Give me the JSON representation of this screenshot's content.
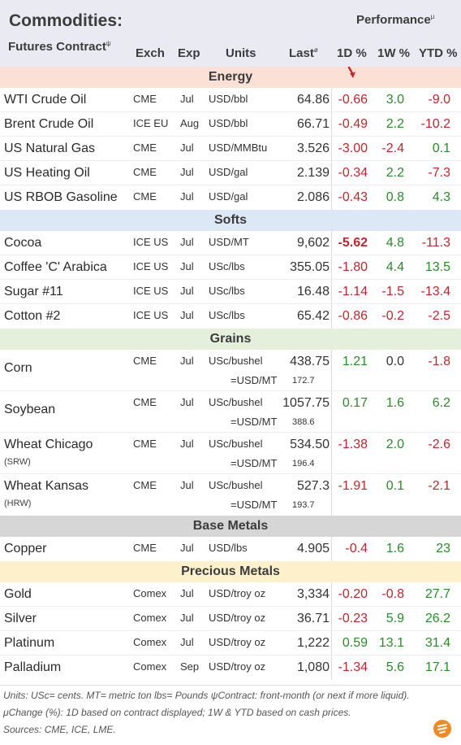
{
  "header": {
    "title": "Commodities:",
    "subtitle": "Futures Contract",
    "subtitle_mark": "ψ",
    "performance": "Performance",
    "performance_mark": "μ",
    "columns": {
      "exch": "Exch",
      "exp": "Exp",
      "units": "Units",
      "last": "Last",
      "last_mark": "ø",
      "d1": "1D %",
      "w1": "1W %",
      "ytd": "YTD %"
    }
  },
  "colors": {
    "negative": "#c0262d",
    "positive": "#2a8a2a",
    "arrow": "#c0262d"
  },
  "sections": {
    "energy": "Energy",
    "softs": "Softs",
    "grains": "Grains",
    "base": "Base Metals",
    "precious": "Precious Metals"
  },
  "energy": [
    {
      "name": "WTI Crude Oil",
      "exch": "CME",
      "exp": "Jul",
      "units": "USD/bbl",
      "last": "64.86",
      "d1": "-0.66",
      "w1": "3.0",
      "ytd": "-9.0"
    },
    {
      "name": "Brent Crude Oil",
      "exch": "ICE EU",
      "exp": "Aug",
      "units": "USD/bbl",
      "last": "66.71",
      "d1": "-0.49",
      "w1": "2.2",
      "ytd": "-10.2"
    },
    {
      "name": "US Natural Gas",
      "exch": "CME",
      "exp": "Jul",
      "units": "USD/MMBtu",
      "last": "3.526",
      "d1": "-3.00",
      "w1": "-2.4",
      "ytd": "0.1"
    },
    {
      "name": "US Heating Oil",
      "exch": "CME",
      "exp": "Jul",
      "units": "USD/gal",
      "last": "2.139",
      "d1": "-0.34",
      "w1": "2.2",
      "ytd": "-7.3"
    },
    {
      "name": "US RBOB Gasoline",
      "exch": "CME",
      "exp": "Jul",
      "units": "USD/gal",
      "last": "2.086",
      "d1": "-0.43",
      "w1": "0.8",
      "ytd": "4.3"
    }
  ],
  "softs": [
    {
      "name": "Cocoa",
      "exch": "ICE US",
      "exp": "Jul",
      "units": "USD/MT",
      "last": "9,602",
      "d1": "-5.62",
      "w1": "4.8",
      "ytd": "-11.3"
    },
    {
      "name": "Coffee 'C' Arabica",
      "exch": "ICE US",
      "exp": "Jul",
      "units": "USc/lbs",
      "last": "355.05",
      "d1": "-1.80",
      "w1": "4.4",
      "ytd": "13.5"
    },
    {
      "name": "Sugar #11",
      "exch": "ICE US",
      "exp": "Jul",
      "units": "USc/lbs",
      "last": "16.48",
      "d1": "-1.14",
      "w1": "-1.5",
      "ytd": "-13.4"
    },
    {
      "name": "Cotton #2",
      "exch": "ICE US",
      "exp": "Jul",
      "units": "USc/lbs",
      "last": "65.42",
      "d1": "-0.86",
      "w1": "-0.2",
      "ytd": "-2.5"
    }
  ],
  "grains": [
    {
      "name": "Corn",
      "sub": "",
      "exch": "CME",
      "exp": "Jul",
      "units": "USc/bushel",
      "last": "438.75",
      "conv_label": "=USD/MT",
      "conv_value": "172.7",
      "d1": "1.21",
      "w1": "0.0",
      "ytd": "-1.8"
    },
    {
      "name": "Soybean",
      "sub": "",
      "exch": "CME",
      "exp": "Jul",
      "units": "USc/bushel",
      "last": "1057.75",
      "conv_label": "=USD/MT",
      "conv_value": "388.6",
      "d1": "0.17",
      "w1": "1.6",
      "ytd": "6.2"
    },
    {
      "name": "Wheat Chicago",
      "sub": "(SRW)",
      "exch": "CME",
      "exp": "Jul",
      "units": "USc/bushel",
      "last": "534.50",
      "conv_label": "=USD/MT",
      "conv_value": "196.4",
      "d1": "-1.38",
      "w1": "2.0",
      "ytd": "-2.6"
    },
    {
      "name": "Wheat Kansas",
      "sub": "(HRW)",
      "exch": "CME",
      "exp": "Jul",
      "units": "USc/bushel",
      "last": "527.3",
      "conv_label": "=USD/MT",
      "conv_value": "193.7",
      "d1": "-1.91",
      "w1": "0.1",
      "ytd": "-2.1"
    }
  ],
  "base": [
    {
      "name": "Copper",
      "exch": "CME",
      "exp": "Jul",
      "units": "USD/lbs",
      "last": "4.905",
      "d1": "-0.4",
      "w1": "1.6",
      "ytd": "23"
    }
  ],
  "precious": [
    {
      "name": "Gold",
      "exch": "Comex",
      "exp": "Jul",
      "units": "USD/troy oz",
      "last": "3,334",
      "d1": "-0.20",
      "w1": "-0.8",
      "ytd": "27.7"
    },
    {
      "name": "Silver",
      "exch": "Comex",
      "exp": "Jul",
      "units": "USD/troy oz",
      "last": "36.71",
      "d1": "-0.23",
      "w1": "5.9",
      "ytd": "26.2"
    },
    {
      "name": "Platinum",
      "exch": "Comex",
      "exp": "Jul",
      "units": "USD/troy oz",
      "last": "1,222",
      "d1": "0.59",
      "w1": "13.1",
      "ytd": "31.4"
    },
    {
      "name": "Palladium",
      "exch": "Comex",
      "exp": "Sep",
      "units": "USD/troy oz",
      "last": "1,080",
      "d1": "-1.34",
      "w1": "5.6",
      "ytd": "17.1"
    }
  ],
  "footnotes": {
    "line1": "Units: USc= cents.   MT= metric ton   lbs= Pounds  ψContract: front-month (or next if more liquid).",
    "line2": "μChange (%): 1D based on contract displayed; 1W & YTD based on cash prices.",
    "line3": "Sources: CME, ICE, LME."
  },
  "logo_icon": "orange-circle-logo"
}
